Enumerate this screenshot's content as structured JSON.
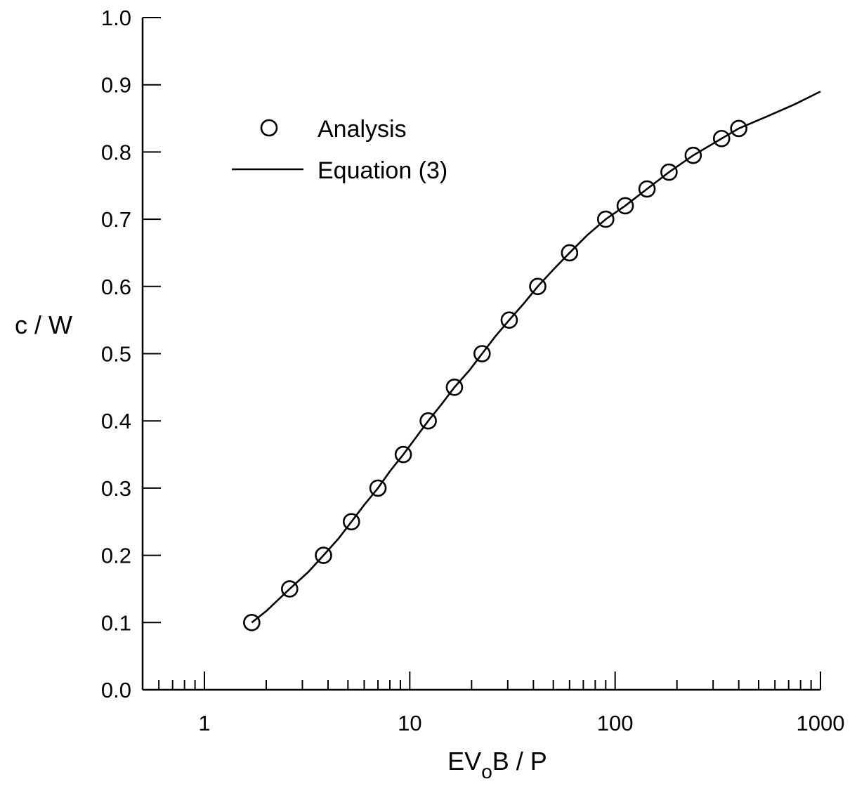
{
  "chart_data": {
    "type": "scatter",
    "xlabel_main": "EV",
    "xlabel_sub": "o",
    "xlabel_rest": "B / P",
    "ylabel": "c / W",
    "xscale": "log",
    "xlim": [
      0.5,
      1000
    ],
    "ylim": [
      0.0,
      1.0
    ],
    "x_ticks": [
      "1",
      "10",
      "100",
      "1000"
    ],
    "y_ticks": [
      "0.0",
      "0.1",
      "0.2",
      "0.3",
      "0.4",
      "0.5",
      "0.6",
      "0.7",
      "0.8",
      "0.9",
      "1.0"
    ],
    "legend_position": "top-left",
    "series": [
      {
        "name": "Analysis",
        "marker": "open-circle",
        "x": [
          1.7,
          2.6,
          3.8,
          5.2,
          7.0,
          9.3,
          12.3,
          16.5,
          22.5,
          30.5,
          42.0,
          60.0,
          90.0,
          112.0,
          143.0,
          183.0,
          240.0,
          330.0,
          400.0
        ],
        "y": [
          0.1,
          0.15,
          0.2,
          0.25,
          0.3,
          0.35,
          0.4,
          0.45,
          0.5,
          0.55,
          0.6,
          0.65,
          0.7,
          0.72,
          0.745,
          0.77,
          0.795,
          0.82,
          0.835
        ]
      },
      {
        "name": "Equation (3)",
        "style": "solid-line",
        "x": [
          1.7,
          2.0,
          2.6,
          3.2,
          3.8,
          4.5,
          5.2,
          6.0,
          7.0,
          8.0,
          9.3,
          10.7,
          12.3,
          14.3,
          16.5,
          19.5,
          22.5,
          26.0,
          30.5,
          36.0,
          42.0,
          50.0,
          60.0,
          73.0,
          90.0,
          112.0,
          143.0,
          183.0,
          240.0,
          330.0,
          400.0,
          550.0,
          750.0,
          1000.0
        ],
        "y": [
          0.1,
          0.117,
          0.15,
          0.175,
          0.2,
          0.225,
          0.25,
          0.275,
          0.3,
          0.325,
          0.35,
          0.375,
          0.4,
          0.425,
          0.45,
          0.475,
          0.5,
          0.525,
          0.55,
          0.575,
          0.6,
          0.625,
          0.65,
          0.676,
          0.7,
          0.72,
          0.745,
          0.77,
          0.795,
          0.82,
          0.835,
          0.853,
          0.871,
          0.89
        ]
      }
    ]
  }
}
